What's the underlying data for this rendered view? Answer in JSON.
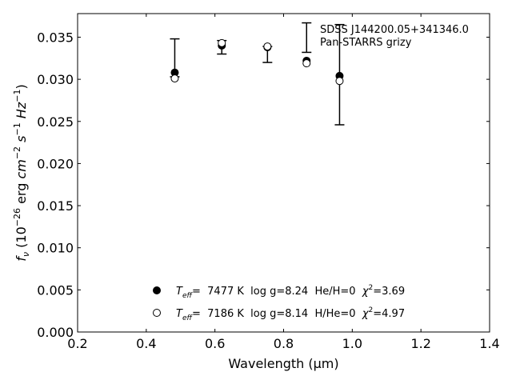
{
  "chart_data": {
    "type": "scatter",
    "title": "",
    "annotations": [
      "SDSS J144200.05+341346.0",
      "Pan-STARRS grizy"
    ],
    "xlabel": "Wavelength (μm)",
    "ylabel": "f_ν (10^-26 erg cm^-2 s^-1 Hz^-1)",
    "xlim": [
      0.2,
      1.4
    ],
    "ylim": [
      0.0,
      0.0378
    ],
    "xticks": [
      0.2,
      0.4,
      0.6,
      0.8,
      1.0,
      1.2,
      1.4
    ],
    "xtick_labels": [
      "0.2",
      "0.4",
      "0.6",
      "0.8",
      "1.0",
      "1.2",
      "1.4"
    ],
    "yticks": [
      0.0,
      0.005,
      0.01,
      0.015,
      0.02,
      0.025,
      0.03,
      0.035
    ],
    "ytick_labels": [
      "0.000",
      "0.005",
      "0.010",
      "0.015",
      "0.020",
      "0.025",
      "0.030",
      "0.035"
    ],
    "grid": false,
    "legend_placement": "bottom-center",
    "observed": {
      "x": [
        0.483,
        0.62,
        0.753,
        0.867,
        0.963
      ],
      "y": [
        0.0348,
        0.0346,
        0.0339,
        0.0367,
        0.0365
      ],
      "yerr_low": [
        0.0303,
        0.033,
        0.032,
        0.0332,
        0.0246
      ]
    },
    "series": [
      {
        "label_T": "T",
        "label_sub": "eff",
        "label_rest": "=  7477 K  log g=8.24  He/H=0  ",
        "label_chi": "χ",
        "label_chi_value": "=3.69",
        "marker": "filled-circle",
        "color": "#000000",
        "x": [
          0.483,
          0.62,
          0.753,
          0.867,
          0.963
        ],
        "y": [
          0.0308,
          0.034,
          0.0338,
          0.0322,
          0.0304
        ]
      },
      {
        "label_T": "T",
        "label_sub": "eff",
        "label_rest": "=  7186 K  log g=8.14  H/He=0  ",
        "label_chi": "χ",
        "label_chi_value": "=4.97",
        "marker": "open-circle",
        "color": "#000000",
        "x": [
          0.483,
          0.62,
          0.753,
          0.867,
          0.963
        ],
        "y": [
          0.0301,
          0.0343,
          0.0339,
          0.0319,
          0.0298
        ]
      }
    ]
  }
}
